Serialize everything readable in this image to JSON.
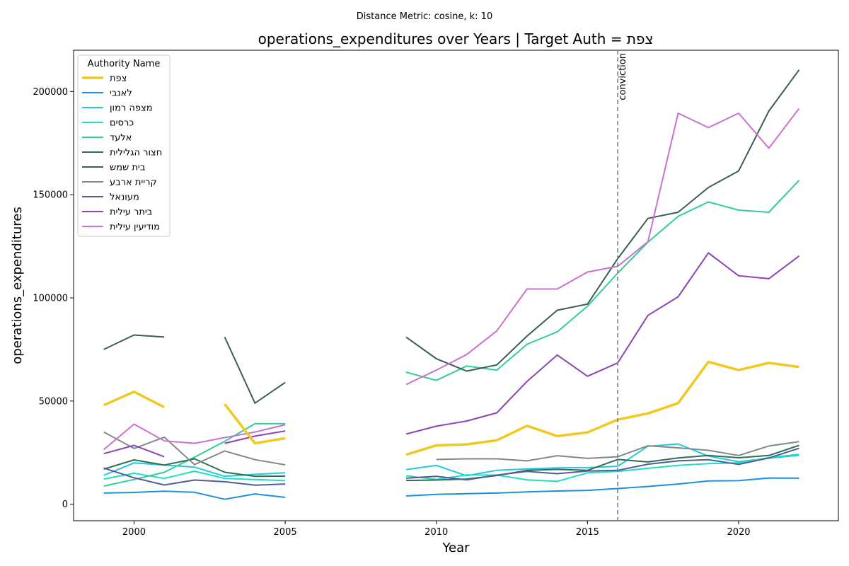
{
  "chart_data": {
    "type": "line",
    "suptitle": "Distance Metric: cosine, k: 10",
    "title": "operations_expenditures over Years | Target Auth = צפת",
    "xlabel": "Year",
    "ylabel": "operations_expenditures",
    "xlim": [
      1998,
      2023.3
    ],
    "ylim": [
      -8000,
      220000
    ],
    "xticks": [
      2000,
      2005,
      2010,
      2015,
      2020
    ],
    "yticks": [
      0,
      50000,
      100000,
      150000,
      200000
    ],
    "grid": false,
    "legend": {
      "title": "Authority Name",
      "placement": "upper-left"
    },
    "annotation": {
      "text": "conviction",
      "x": 2016,
      "style": "dashed-vertical",
      "color": "#808080"
    },
    "x": [
      1999,
      2000,
      2001,
      2002,
      2003,
      2004,
      2005,
      2006,
      2007,
      2008,
      2009,
      2010,
      2011,
      2012,
      2013,
      2014,
      2015,
      2016,
      2017,
      2018,
      2019,
      2020,
      2021,
      2022
    ],
    "series": [
      {
        "name": "צפת",
        "color": "#f0c820",
        "width": 3.5,
        "values": [
          48000,
          54500,
          47000,
          null,
          48500,
          29500,
          32000,
          null,
          null,
          null,
          24000,
          28500,
          29000,
          31000,
          38000,
          33000,
          34800,
          41000,
          44000,
          49000,
          69000,
          65000,
          68500,
          66500
        ]
      },
      {
        "name": "לאנבי",
        "color": "#1e90e0",
        "width": 2,
        "values": [
          5400,
          5700,
          6300,
          5800,
          2400,
          5000,
          3300,
          null,
          null,
          null,
          4000,
          4800,
          5100,
          5400,
          6000,
          6400,
          6700,
          7600,
          8600,
          9800,
          11300,
          11400,
          12700,
          12600
        ]
      },
      {
        "name": "מצפה רמון",
        "color": "#22c8e0",
        "width": 2,
        "values": [
          14000,
          20000,
          19000,
          18000,
          13500,
          14500,
          15200,
          null,
          null,
          null,
          16800,
          18800,
          13800,
          16400,
          17100,
          17600,
          17700,
          18400,
          28100,
          29200,
          23300,
          20600,
          22300,
          23700
        ]
      },
      {
        "name": "כרסים",
        "color": "#1ee0c0",
        "width": 2,
        "values": [
          12200,
          15000,
          12500,
          16000,
          12500,
          12000,
          11400,
          null,
          null,
          null,
          13800,
          12000,
          14200,
          14100,
          11800,
          11100,
          15200,
          15900,
          17400,
          18800,
          19700,
          20000,
          22600,
          24200
        ]
      },
      {
        "name": "אלעד",
        "color": "#30d090",
        "width": 2,
        "values": [
          8800,
          12000,
          15500,
          22800,
          30500,
          39000,
          39000,
          null,
          null,
          null,
          64000,
          60000,
          67000,
          65000,
          77500,
          83500,
          96000,
          112000,
          127000,
          139500,
          146500,
          142500,
          141500,
          157000
        ]
      },
      {
        "name": "חצור הגלילית",
        "color": "#2e7050",
        "width": 2,
        "values": [
          17000,
          21500,
          19000,
          22000,
          15500,
          13500,
          13600,
          null,
          null,
          null,
          11500,
          11700,
          12200,
          13900,
          16400,
          16900,
          16400,
          21700,
          20500,
          22400,
          23600,
          22500,
          23600,
          28500
        ]
      },
      {
        "name": "בית שמש",
        "color": "#3b5e50",
        "width": 2,
        "values": [
          75000,
          82000,
          81000,
          null,
          81000,
          49000,
          59000,
          null,
          null,
          null,
          81000,
          70500,
          64500,
          67500,
          81500,
          94000,
          97000,
          119000,
          138500,
          141500,
          153500,
          161500,
          190500,
          210500
        ]
      },
      {
        "name": "קריית ארבע",
        "color": "#7e8c88",
        "width": 2,
        "values": [
          35000,
          27000,
          32500,
          19200,
          25800,
          21600,
          19100,
          null,
          null,
          null,
          null,
          21700,
          22000,
          22000,
          21000,
          23500,
          22200,
          23000,
          28300,
          27300,
          26100,
          23600,
          28200,
          30300
        ]
      },
      {
        "name": "מעונאל",
        "color": "#545a9e",
        "width": 2,
        "values": [
          17500,
          12800,
          9300,
          11700,
          10900,
          9200,
          9800,
          null,
          null,
          null,
          12600,
          13500,
          11800,
          14100,
          15900,
          14800,
          16100,
          16400,
          19400,
          21000,
          21600,
          19300,
          22400,
          27100
        ]
      },
      {
        "name": "ביתר עילית",
        "color": "#8a44b8",
        "width": 2,
        "values": [
          24500,
          28500,
          23000,
          null,
          29500,
          33000,
          35500,
          null,
          null,
          null,
          34000,
          37800,
          40300,
          44300,
          59500,
          72300,
          62000,
          68500,
          91500,
          100500,
          121800,
          110700,
          109300,
          120300
        ]
      },
      {
        "name": "מודיעין עילית",
        "color": "#cc70d0",
        "width": 2,
        "values": [
          26500,
          38800,
          30700,
          29500,
          32300,
          35000,
          38500,
          null,
          null,
          null,
          58000,
          65000,
          72500,
          84000,
          104300,
          104300,
          112500,
          115300,
          127200,
          189500,
          182500,
          189500,
          172500,
          191800
        ]
      }
    ]
  }
}
